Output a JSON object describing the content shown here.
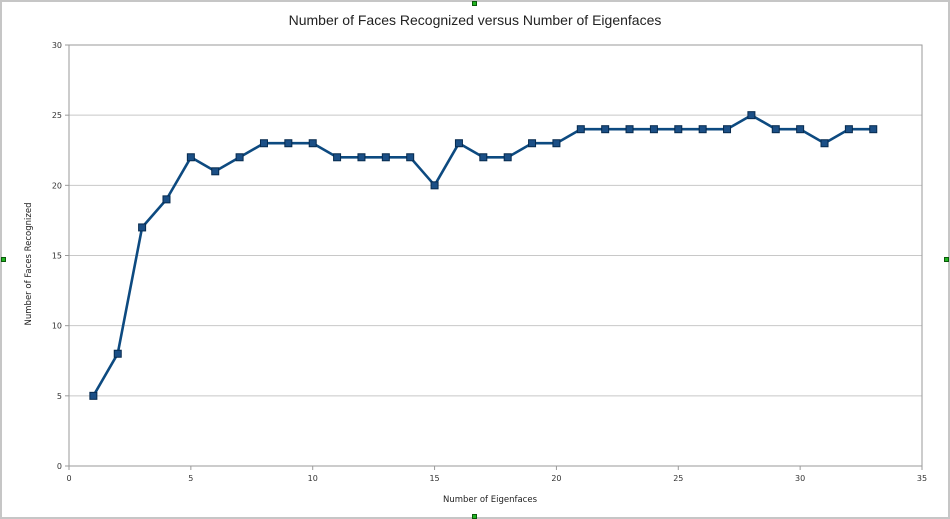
{
  "colors": {
    "series_line": "#0d4a80",
    "marker_fill": "#1b4f86",
    "marker_stroke": "#062a4e",
    "gridline": "#c8c8c8",
    "axis": "#9a9a9a",
    "selection_handle": "#23b523"
  },
  "chart_data": {
    "type": "line",
    "title": "Number of Faces Recognized versus Number of Eigenfaces",
    "xlabel": "Number of Eigenfaces",
    "ylabel": "Number of Faces Recognized",
    "xlim": [
      0,
      35
    ],
    "ylim": [
      0,
      30
    ],
    "x_ticks": [
      0,
      5,
      10,
      15,
      20,
      25,
      30,
      35
    ],
    "y_ticks": [
      0,
      5,
      10,
      15,
      20,
      25,
      30
    ],
    "grid": true,
    "legend": "none",
    "marker": "square",
    "series": [
      {
        "x": [
          1,
          2,
          3,
          4,
          5,
          6,
          7,
          8,
          9,
          10,
          11,
          12,
          13,
          14,
          15,
          16,
          17,
          18,
          19,
          20,
          21,
          22,
          23,
          24,
          25,
          26,
          27,
          28,
          29,
          30,
          31,
          32,
          33
        ],
        "values": [
          5,
          8,
          17,
          19,
          22,
          21,
          22,
          23,
          23,
          23,
          22,
          22,
          22,
          22,
          20,
          23,
          22,
          22,
          23,
          23,
          24,
          24,
          24,
          24,
          24,
          24,
          24,
          25,
          24,
          24,
          23,
          24,
          24
        ]
      }
    ]
  }
}
